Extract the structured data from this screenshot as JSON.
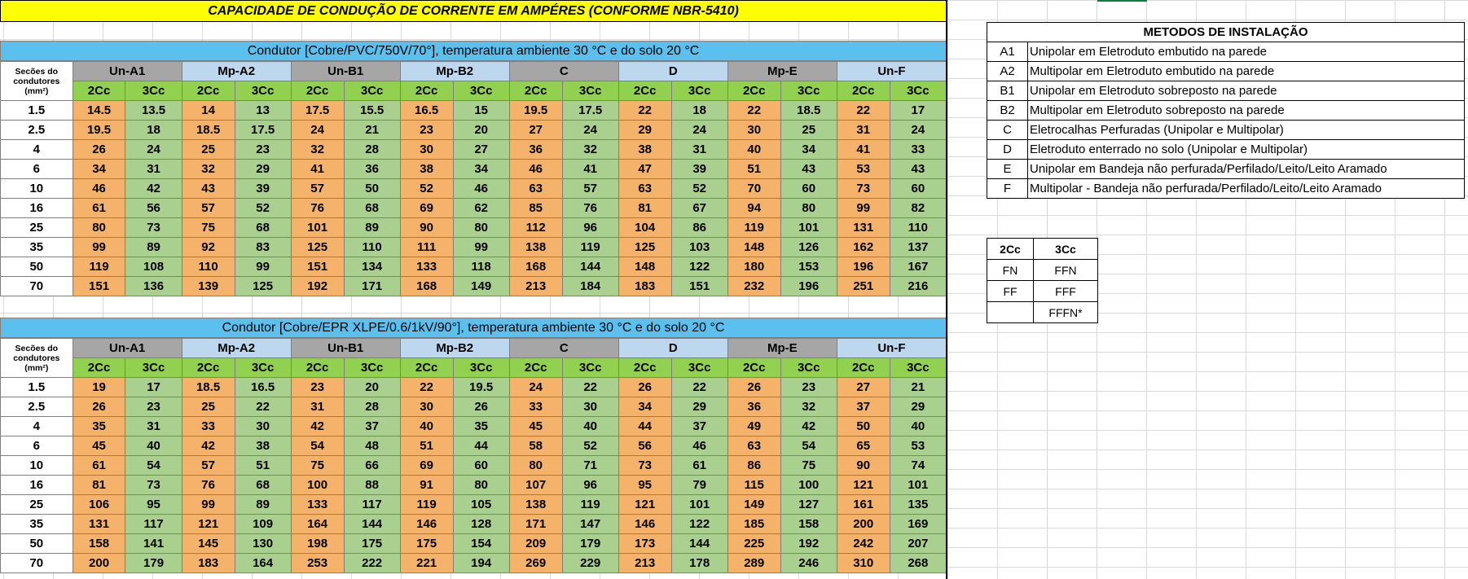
{
  "title": "CAPACIDADE DE CONDUÇÃO DE CORRENTE EM AMPÉRES (CONFORME NBR-5410)",
  "corner_label": "Secões do condutores (mm²)",
  "groups": [
    {
      "label": "Un-A1",
      "style": "gray"
    },
    {
      "label": "Mp-A2",
      "style": "blue"
    },
    {
      "label": "Un-B1",
      "style": "gray"
    },
    {
      "label": "Mp-B2",
      "style": "blue"
    },
    {
      "label": "C",
      "style": "gray"
    },
    {
      "label": "D",
      "style": "blue"
    },
    {
      "label": "Mp-E",
      "style": "gray"
    },
    {
      "label": "Un-F",
      "style": "blue"
    }
  ],
  "sub_2": "2Cc",
  "sub_3": "3Cc",
  "tables": [
    {
      "header": "Condutor [Cobre/PVC/750V/70°], temperatura ambiente 30 °C e do solo 20 °C",
      "rows": [
        {
          "section": "1.5",
          "values": [
            "14.5",
            "13.5",
            "14",
            "13",
            "17.5",
            "15.5",
            "16.5",
            "15",
            "19.5",
            "17.5",
            "22",
            "18",
            "22",
            "18.5",
            "22",
            "17"
          ]
        },
        {
          "section": "2.5",
          "values": [
            "19.5",
            "18",
            "18.5",
            "17.5",
            "24",
            "21",
            "23",
            "20",
            "27",
            "24",
            "29",
            "24",
            "30",
            "25",
            "31",
            "24"
          ]
        },
        {
          "section": "4",
          "values": [
            "26",
            "24",
            "25",
            "23",
            "32",
            "28",
            "30",
            "27",
            "36",
            "32",
            "38",
            "31",
            "40",
            "34",
            "41",
            "33"
          ]
        },
        {
          "section": "6",
          "values": [
            "34",
            "31",
            "32",
            "29",
            "41",
            "36",
            "38",
            "34",
            "46",
            "41",
            "47",
            "39",
            "51",
            "43",
            "53",
            "43"
          ]
        },
        {
          "section": "10",
          "values": [
            "46",
            "42",
            "43",
            "39",
            "57",
            "50",
            "52",
            "46",
            "63",
            "57",
            "63",
            "52",
            "70",
            "60",
            "73",
            "60"
          ]
        },
        {
          "section": "16",
          "values": [
            "61",
            "56",
            "57",
            "52",
            "76",
            "68",
            "69",
            "62",
            "85",
            "76",
            "81",
            "67",
            "94",
            "80",
            "99",
            "82"
          ]
        },
        {
          "section": "25",
          "values": [
            "80",
            "73",
            "75",
            "68",
            "101",
            "89",
            "90",
            "80",
            "112",
            "96",
            "104",
            "86",
            "119",
            "101",
            "131",
            "110"
          ]
        },
        {
          "section": "35",
          "values": [
            "99",
            "89",
            "92",
            "83",
            "125",
            "110",
            "111",
            "99",
            "138",
            "119",
            "125",
            "103",
            "148",
            "126",
            "162",
            "137"
          ]
        },
        {
          "section": "50",
          "values": [
            "119",
            "108",
            "110",
            "99",
            "151",
            "134",
            "133",
            "118",
            "168",
            "144",
            "148",
            "122",
            "180",
            "153",
            "196",
            "167"
          ]
        },
        {
          "section": "70",
          "values": [
            "151",
            "136",
            "139",
            "125",
            "192",
            "171",
            "168",
            "149",
            "213",
            "184",
            "183",
            "151",
            "232",
            "196",
            "251",
            "216"
          ]
        }
      ]
    },
    {
      "header": "Condutor [Cobre/EPR XLPE/0.6/1kV/90°], temperatura ambiente 30 °C e do solo 20 °C",
      "rows": [
        {
          "section": "1.5",
          "values": [
            "19",
            "17",
            "18.5",
            "16.5",
            "23",
            "20",
            "22",
            "19.5",
            "24",
            "22",
            "26",
            "22",
            "26",
            "23",
            "27",
            "21"
          ]
        },
        {
          "section": "2.5",
          "values": [
            "26",
            "23",
            "25",
            "22",
            "31",
            "28",
            "30",
            "26",
            "33",
            "30",
            "34",
            "29",
            "36",
            "32",
            "37",
            "29"
          ]
        },
        {
          "section": "4",
          "values": [
            "35",
            "31",
            "33",
            "30",
            "42",
            "37",
            "40",
            "35",
            "45",
            "40",
            "44",
            "37",
            "49",
            "42",
            "50",
            "40"
          ]
        },
        {
          "section": "6",
          "values": [
            "45",
            "40",
            "42",
            "38",
            "54",
            "48",
            "51",
            "44",
            "58",
            "52",
            "56",
            "46",
            "63",
            "54",
            "65",
            "53"
          ]
        },
        {
          "section": "10",
          "values": [
            "61",
            "54",
            "57",
            "51",
            "75",
            "66",
            "69",
            "60",
            "80",
            "71",
            "73",
            "61",
            "86",
            "75",
            "90",
            "74"
          ]
        },
        {
          "section": "16",
          "values": [
            "81",
            "73",
            "76",
            "68",
            "100",
            "88",
            "91",
            "80",
            "107",
            "96",
            "95",
            "79",
            "115",
            "100",
            "121",
            "101"
          ]
        },
        {
          "section": "25",
          "values": [
            "106",
            "95",
            "99",
            "89",
            "133",
            "117",
            "119",
            "105",
            "138",
            "119",
            "121",
            "101",
            "149",
            "127",
            "161",
            "135"
          ]
        },
        {
          "section": "35",
          "values": [
            "131",
            "117",
            "121",
            "109",
            "164",
            "144",
            "146",
            "128",
            "171",
            "147",
            "146",
            "122",
            "185",
            "158",
            "200",
            "169"
          ]
        },
        {
          "section": "50",
          "values": [
            "158",
            "141",
            "145",
            "130",
            "198",
            "175",
            "175",
            "154",
            "209",
            "179",
            "173",
            "144",
            "225",
            "192",
            "242",
            "207"
          ]
        },
        {
          "section": "70",
          "values": [
            "200",
            "179",
            "183",
            "164",
            "253",
            "222",
            "221",
            "194",
            "269",
            "229",
            "213",
            "178",
            "289",
            "246",
            "310",
            "268"
          ]
        }
      ]
    }
  ],
  "methods": {
    "title": "METODOS DE INSTALAÇÃO",
    "items": [
      {
        "code": "A1",
        "desc": "Unipolar em Eletroduto embutido na parede"
      },
      {
        "code": "A2",
        "desc": "Multipolar em Eletroduto embutido na parede"
      },
      {
        "code": "B1",
        "desc": "Unipolar em Eletroduto sobreposto na parede"
      },
      {
        "code": "B2",
        "desc": "Multipolar em Eletroduto sobreposto na parede"
      },
      {
        "code": "C",
        "desc": "Eletrocalhas Perfuradas (Unipolar e Multipolar)"
      },
      {
        "code": "D",
        "desc": "Eletroduto enterrado no solo (Unipolar e Multipolar)"
      },
      {
        "code": "E",
        "desc": "Unipolar em Bandeja não perfurada/Perfilado/Leito/Leito Aramado"
      },
      {
        "code": "F",
        "desc": "Multipolar - Bandeja não perfurada/Perfilado/Leito/Leito Aramado"
      }
    ]
  },
  "legend": {
    "h2": "2Cc",
    "h3": "3Cc",
    "rows": [
      {
        "c2": "FN",
        "c3": "FFN"
      },
      {
        "c2": "FF",
        "c3": "FFF"
      },
      {
        "c2": "",
        "c3": "FFFN*"
      }
    ]
  },
  "colors": {
    "title_bg": "#ffff00",
    "header_bg": "#5bc0ee",
    "group_gray": "#a6a6a6",
    "group_blue": "#bdd7ee",
    "sub_green": "#92d050",
    "value_2cc": "#f4b26a",
    "value_3cc": "#a9d08e"
  }
}
